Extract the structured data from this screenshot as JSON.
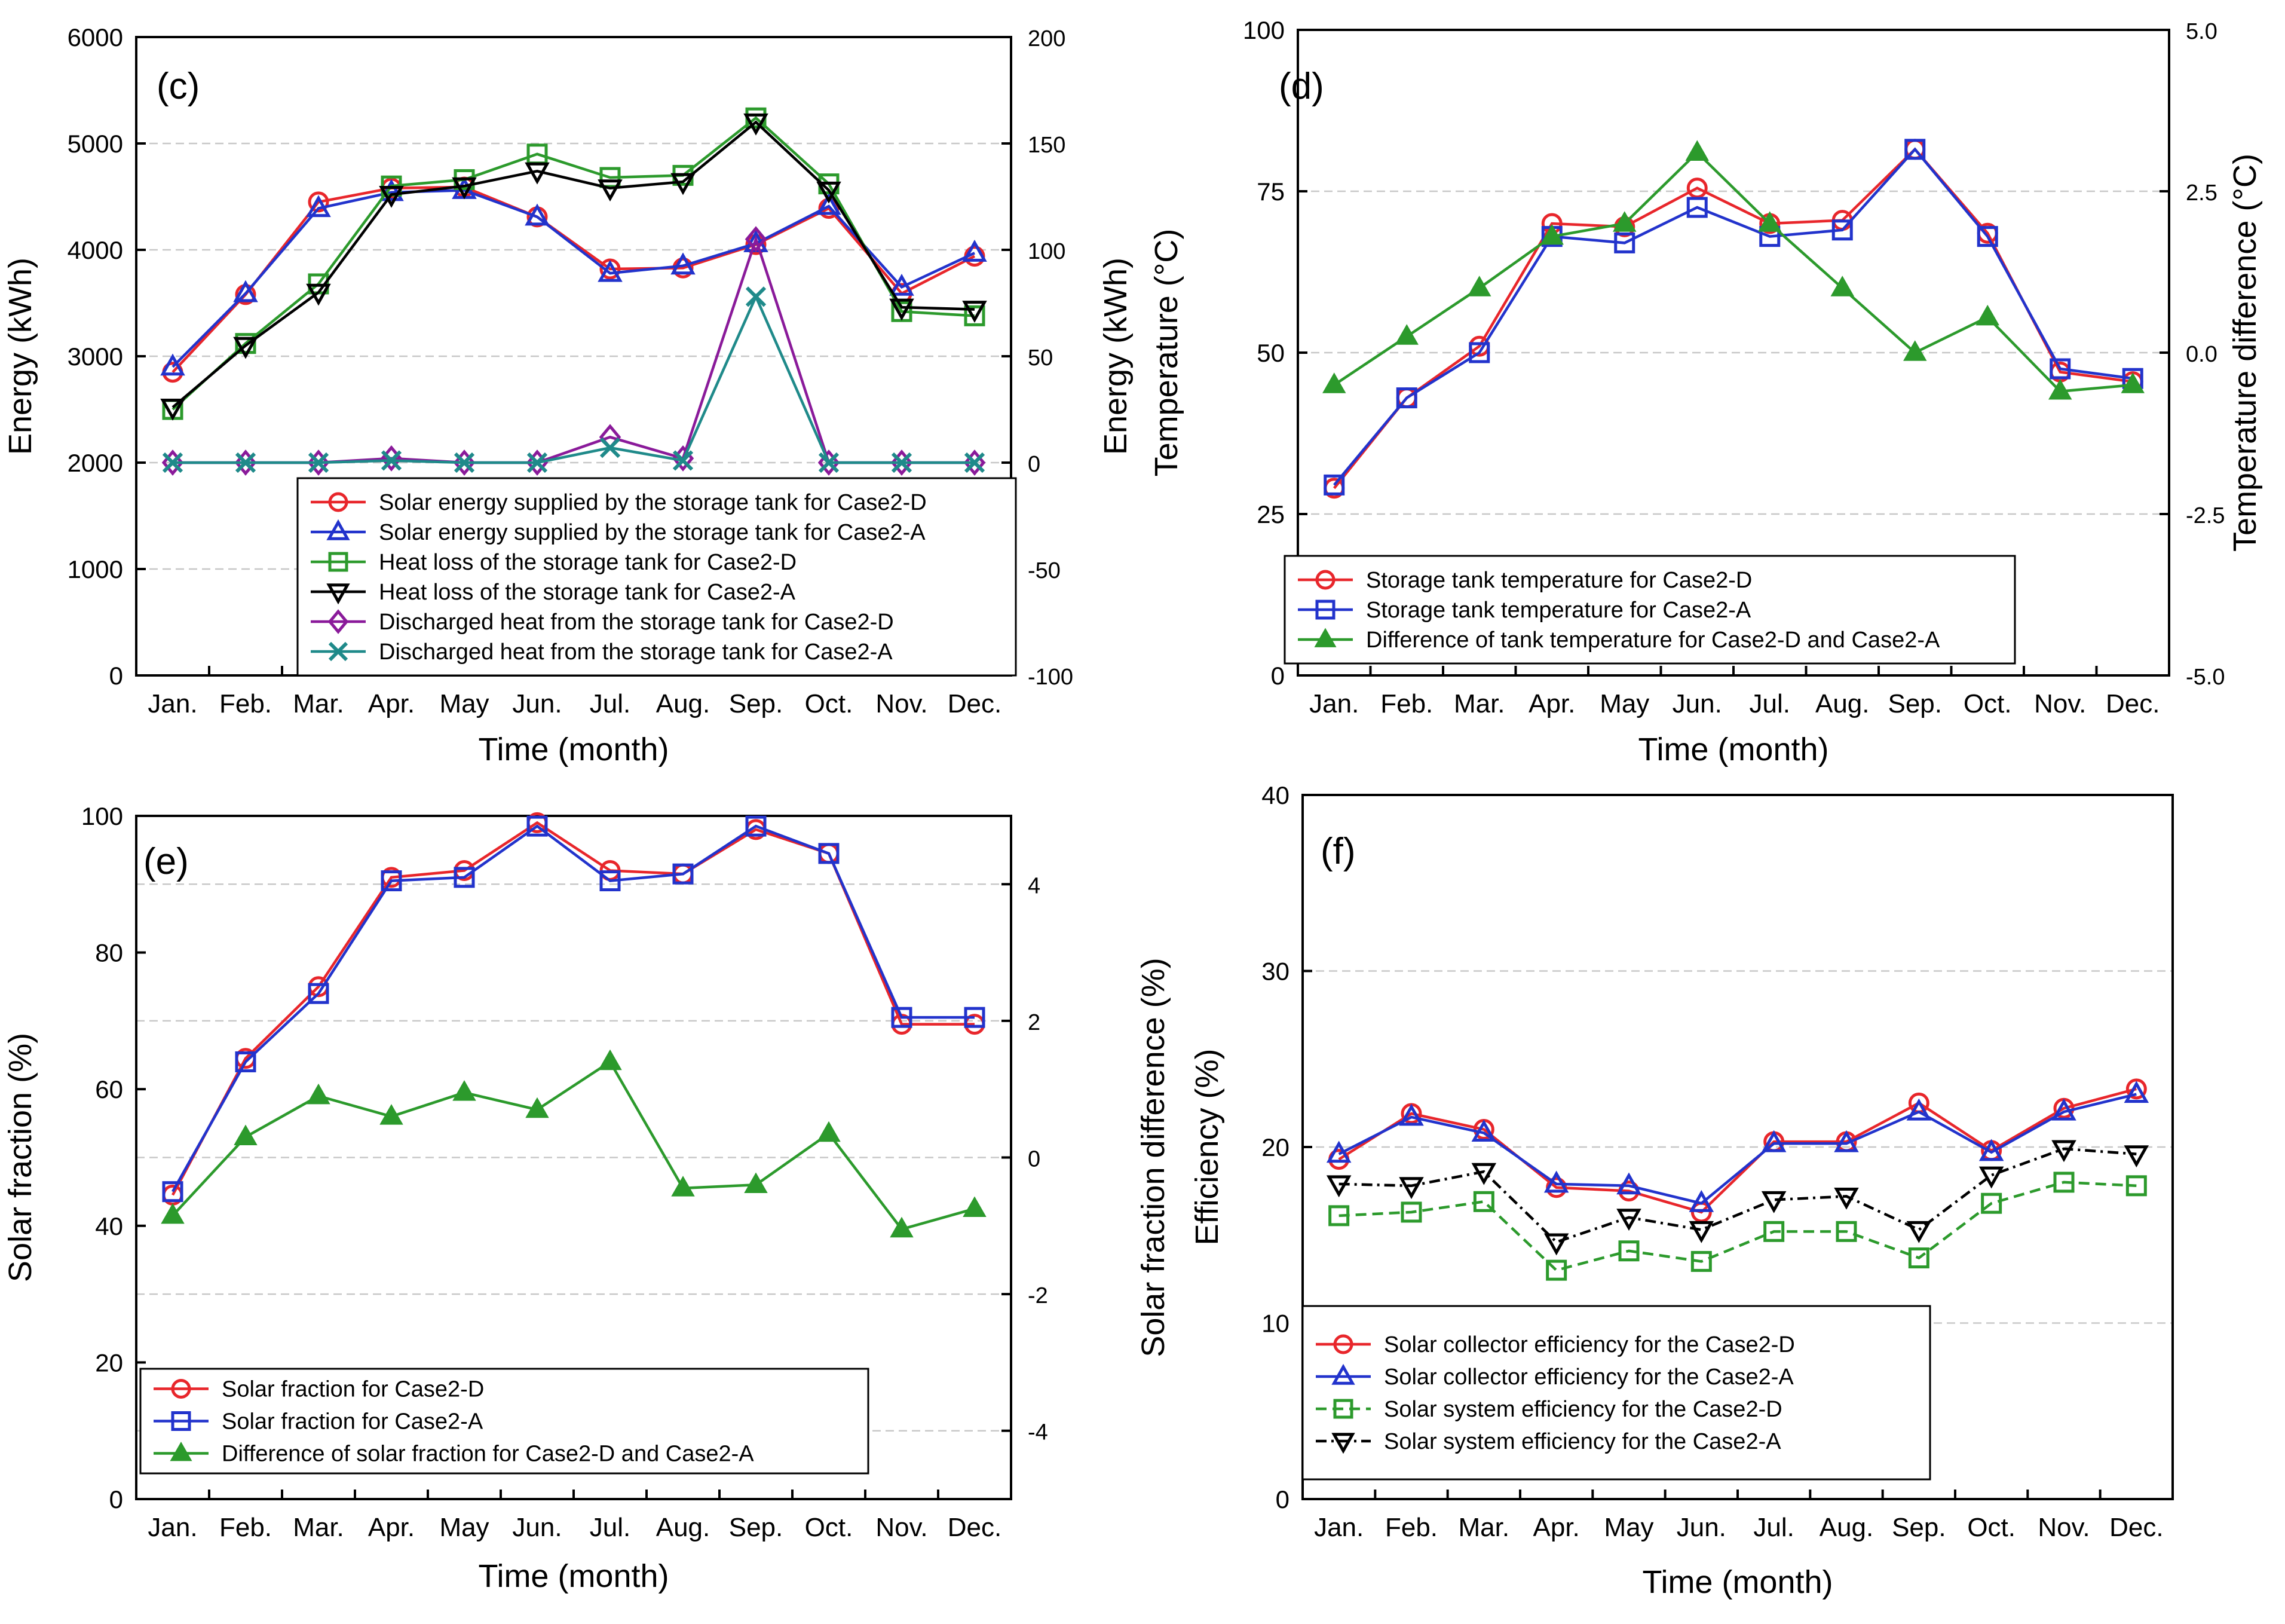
{
  "months": [
    "Jan.",
    "Feb.",
    "Mar.",
    "Apr.",
    "May",
    "Jun.",
    "Jul.",
    "Aug.",
    "Sep.",
    "Oct.",
    "Nov.",
    "Dec."
  ],
  "chart_data": [
    {
      "type": "line",
      "panel_label": "(c)",
      "xlabel": "Time (month)",
      "ylabel": "Energy (kWh)",
      "ylim": [
        0,
        6000
      ],
      "yticks": [
        "0",
        "1000",
        "2000",
        "3000",
        "4000",
        "5000",
        "6000"
      ],
      "y2label": "Energy (kWh)",
      "y2lim": [
        -100,
        200
      ],
      "y2ticks": [
        "-100",
        "-50",
        "0",
        "50",
        "100",
        "150",
        "200"
      ],
      "grid_values": [
        1000,
        2000,
        3000,
        4000,
        5000
      ],
      "legend_position": "bottom-right",
      "series": [
        {
          "name": "Solar energy supplied by the storage tank for Case2-D",
          "axis": "left",
          "color": "#e8262b",
          "marker": "circle",
          "dash": "solid",
          "values": [
            2850,
            3580,
            4450,
            4580,
            4590,
            4310,
            3820,
            3830,
            4050,
            4390,
            3590,
            3940
          ]
        },
        {
          "name": "Solar energy supplied by the storage tank for Case2-A",
          "axis": "left",
          "color": "#2233cc",
          "marker": "triangle-up",
          "dash": "solid",
          "values": [
            2900,
            3590,
            4390,
            4540,
            4560,
            4310,
            3780,
            3850,
            4060,
            4410,
            3650,
            3970
          ]
        },
        {
          "name": "Heat loss of the storage tank for Case2-D",
          "axis": "right",
          "color": "#2c9a2c",
          "marker": "square",
          "dash": "solid",
          "values": [
            25,
            56,
            84,
            130,
            133,
            145,
            134,
            135,
            162,
            131,
            71,
            69
          ]
        },
        {
          "name": "Heat loss of the storage tank for Case2-A",
          "axis": "right",
          "color": "#000000",
          "marker": "triangle-down",
          "dash": "solid",
          "values": [
            26,
            55,
            80,
            126,
            130,
            137,
            129,
            132,
            160,
            128,
            73,
            72
          ]
        },
        {
          "name": "Discharged heat from the storage tank for Case2-D",
          "axis": "right",
          "color": "#8a1a9a",
          "marker": "diamond",
          "dash": "solid",
          "values": [
            0,
            0,
            0,
            2,
            0,
            0,
            12,
            2,
            105,
            0,
            0,
            0
          ]
        },
        {
          "name": "Discharged heat from the storage tank for Case2-A",
          "axis": "right",
          "color": "#1f8a8a",
          "marker": "x",
          "dash": "solid",
          "values": [
            0,
            0,
            0,
            1,
            0,
            0,
            7,
            1,
            78,
            0,
            0,
            0
          ]
        }
      ]
    },
    {
      "type": "line",
      "panel_label": "(d)",
      "xlabel": "Time (month)",
      "ylabel": "Temperature (°C)",
      "ylim": [
        0,
        100
      ],
      "yticks": [
        "0",
        "25",
        "50",
        "75",
        "100"
      ],
      "y2label": "Temperature difference (°C)",
      "y2lim": [
        -5,
        5
      ],
      "y2ticks": [
        "-5.0",
        "-2.5",
        "0.0",
        "2.5",
        "5.0"
      ],
      "grid_values": [
        25,
        50,
        75,
        100
      ],
      "legend_position": "bottom-left",
      "series": [
        {
          "name": "Storage tank temperature for Case2-D",
          "axis": "left",
          "color": "#e8262b",
          "marker": "circle",
          "dash": "solid",
          "values": [
            29,
            43,
            51,
            70,
            69.5,
            75.5,
            70,
            70.5,
            81.5,
            68.5,
            47,
            45.5
          ]
        },
        {
          "name": "Storage tank temperature for Case2-A",
          "axis": "left",
          "color": "#2233cc",
          "marker": "square",
          "dash": "solid",
          "values": [
            29.5,
            43,
            50,
            68,
            67,
            72.5,
            68,
            69,
            81.5,
            68,
            47.5,
            46
          ]
        },
        {
          "name": "Difference of tank temperature for Case2-D and Case2-A",
          "axis": "right",
          "color": "#2c9a2c",
          "marker": "triangle-filled",
          "dash": "solid",
          "values": [
            -0.5,
            0.25,
            1.0,
            1.8,
            2.0,
            3.1,
            2.0,
            1.0,
            0.0,
            0.55,
            -0.6,
            -0.5
          ]
        }
      ]
    },
    {
      "type": "line",
      "panel_label": "(e)",
      "xlabel": "Time (month)",
      "ylabel": "Solar fraction (%)",
      "ylim": [
        0,
        100
      ],
      "yticks": [
        "0",
        "20",
        "40",
        "60",
        "80",
        "100"
      ],
      "y2label": "Solar fraction difference (%)",
      "y2lim": [
        -5,
        5
      ],
      "y2ticks": [
        "-4",
        "-2",
        "0",
        "2",
        "4"
      ],
      "y2tick_values": [
        -4,
        -2,
        0,
        2,
        4
      ],
      "grid_values": [
        10,
        30,
        50,
        70,
        90
      ],
      "legend_position": "bottom-left",
      "series": [
        {
          "name": "Solar fraction for Case2-D",
          "axis": "left",
          "color": "#e8262b",
          "marker": "circle",
          "dash": "solid",
          "values": [
            44.5,
            64.5,
            75,
            91,
            92,
            99,
            92,
            91.5,
            98,
            94.5,
            69.5,
            69.5
          ]
        },
        {
          "name": "Solar fraction for Case2-A",
          "axis": "left",
          "color": "#2233cc",
          "marker": "square",
          "dash": "solid",
          "values": [
            45,
            64,
            74,
            90.5,
            91,
            98.5,
            90.5,
            91.5,
            98.5,
            94.5,
            70.5,
            70.5
          ]
        },
        {
          "name": "Difference of solar fraction for Case2-D and Case2-A",
          "axis": "right",
          "color": "#2c9a2c",
          "marker": "triangle-filled",
          "dash": "solid",
          "values": [
            -0.85,
            0.3,
            0.9,
            0.6,
            0.95,
            0.7,
            1.4,
            -0.45,
            -0.4,
            0.35,
            -1.05,
            -0.75
          ]
        }
      ]
    },
    {
      "type": "line",
      "panel_label": "(f)",
      "xlabel": "Time (month)",
      "ylabel": "Efficiency (%)",
      "ylim": [
        0,
        40
      ],
      "yticks": [
        "0",
        "10",
        "20",
        "30",
        "40"
      ],
      "grid_values": [
        10,
        20,
        30
      ],
      "legend_position": "bottom-left",
      "series": [
        {
          "name": "Solar collector efficiency for the Case2-D",
          "axis": "left",
          "color": "#e8262b",
          "marker": "circle",
          "dash": "solid",
          "values": [
            19.3,
            21.9,
            21.0,
            17.7,
            17.5,
            16.3,
            20.3,
            20.3,
            22.5,
            19.8,
            22.2,
            23.3
          ]
        },
        {
          "name": "Solar collector efficiency for the Case2-A",
          "axis": "left",
          "color": "#2233cc",
          "marker": "triangle-up",
          "dash": "solid",
          "values": [
            19.6,
            21.7,
            20.8,
            17.9,
            17.8,
            16.8,
            20.2,
            20.2,
            22.0,
            19.7,
            22.0,
            23.0
          ]
        },
        {
          "name": "Solar system efficiency for the Case2-D",
          "axis": "left",
          "color": "#2c9a2c",
          "marker": "square",
          "dash": "dash",
          "values": [
            16.1,
            16.3,
            16.9,
            13.0,
            14.1,
            13.5,
            15.2,
            15.2,
            13.7,
            16.8,
            18.0,
            17.8
          ]
        },
        {
          "name": "Solar system efficiency for the Case2-A",
          "axis": "left",
          "color": "#000000",
          "marker": "triangle-down",
          "dash": "dashdot",
          "values": [
            17.9,
            17.8,
            18.6,
            14.6,
            16.0,
            15.3,
            17.0,
            17.2,
            15.3,
            18.4,
            19.9,
            19.6
          ]
        }
      ]
    }
  ]
}
